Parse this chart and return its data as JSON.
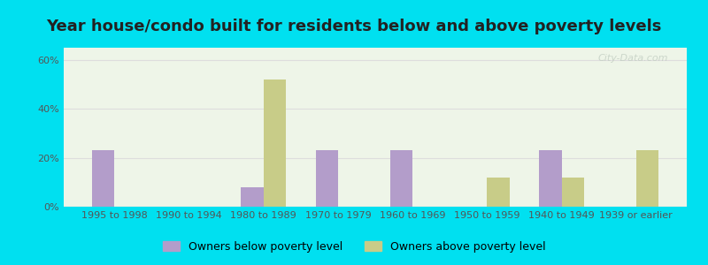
{
  "title": "Year house/condo built for residents below and above poverty levels",
  "categories": [
    "1995 to 1998",
    "1990 to 1994",
    "1980 to 1989",
    "1970 to 1979",
    "1960 to 1969",
    "1950 to 1959",
    "1940 to 1949",
    "1939 or earlier"
  ],
  "below_poverty": [
    23,
    0,
    8,
    23,
    23,
    0,
    23,
    0
  ],
  "above_poverty": [
    0,
    0,
    52,
    0,
    0,
    12,
    12,
    23
  ],
  "below_color": "#b39dca",
  "above_color": "#c8cc88",
  "ylim": [
    0,
    65
  ],
  "yticks": [
    0,
    20,
    40,
    60
  ],
  "ytick_labels": [
    "0%",
    "20%",
    "40%",
    "60%"
  ],
  "legend_below": "Owners below poverty level",
  "legend_above": "Owners above poverty level",
  "outer_bg": "#00e0f0",
  "plot_bg": "#eef5e8",
  "title_fontsize": 13,
  "tick_fontsize": 8,
  "bar_width": 0.3,
  "grid_color": "#dddddd",
  "watermark": "City-Data.com"
}
